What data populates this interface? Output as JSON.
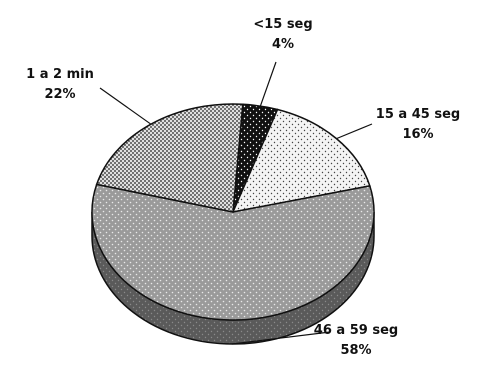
{
  "chart_data": {
    "type": "pie",
    "style": "3d",
    "title": "",
    "slices": [
      {
        "name": "<15 seg",
        "value": 4,
        "value_label": "4%",
        "pattern": "black-dots",
        "color": "#111111"
      },
      {
        "name": "15 a 45 seg",
        "value": 16,
        "value_label": "16%",
        "pattern": "light-dots",
        "color": "#e8e8e8"
      },
      {
        "name": "46 a 59 seg",
        "value": 58,
        "value_label": "58%",
        "pattern": "gray-dots",
        "color": "#9a9a9a"
      },
      {
        "name": "1 a 2 min",
        "value": 22,
        "value_label": "22%",
        "pattern": "dense-dots",
        "color": "#6e6e6e"
      }
    ]
  },
  "colors": {
    "outline": "#111111",
    "side_shade": "#5a5a5a",
    "background": "#ffffff"
  }
}
